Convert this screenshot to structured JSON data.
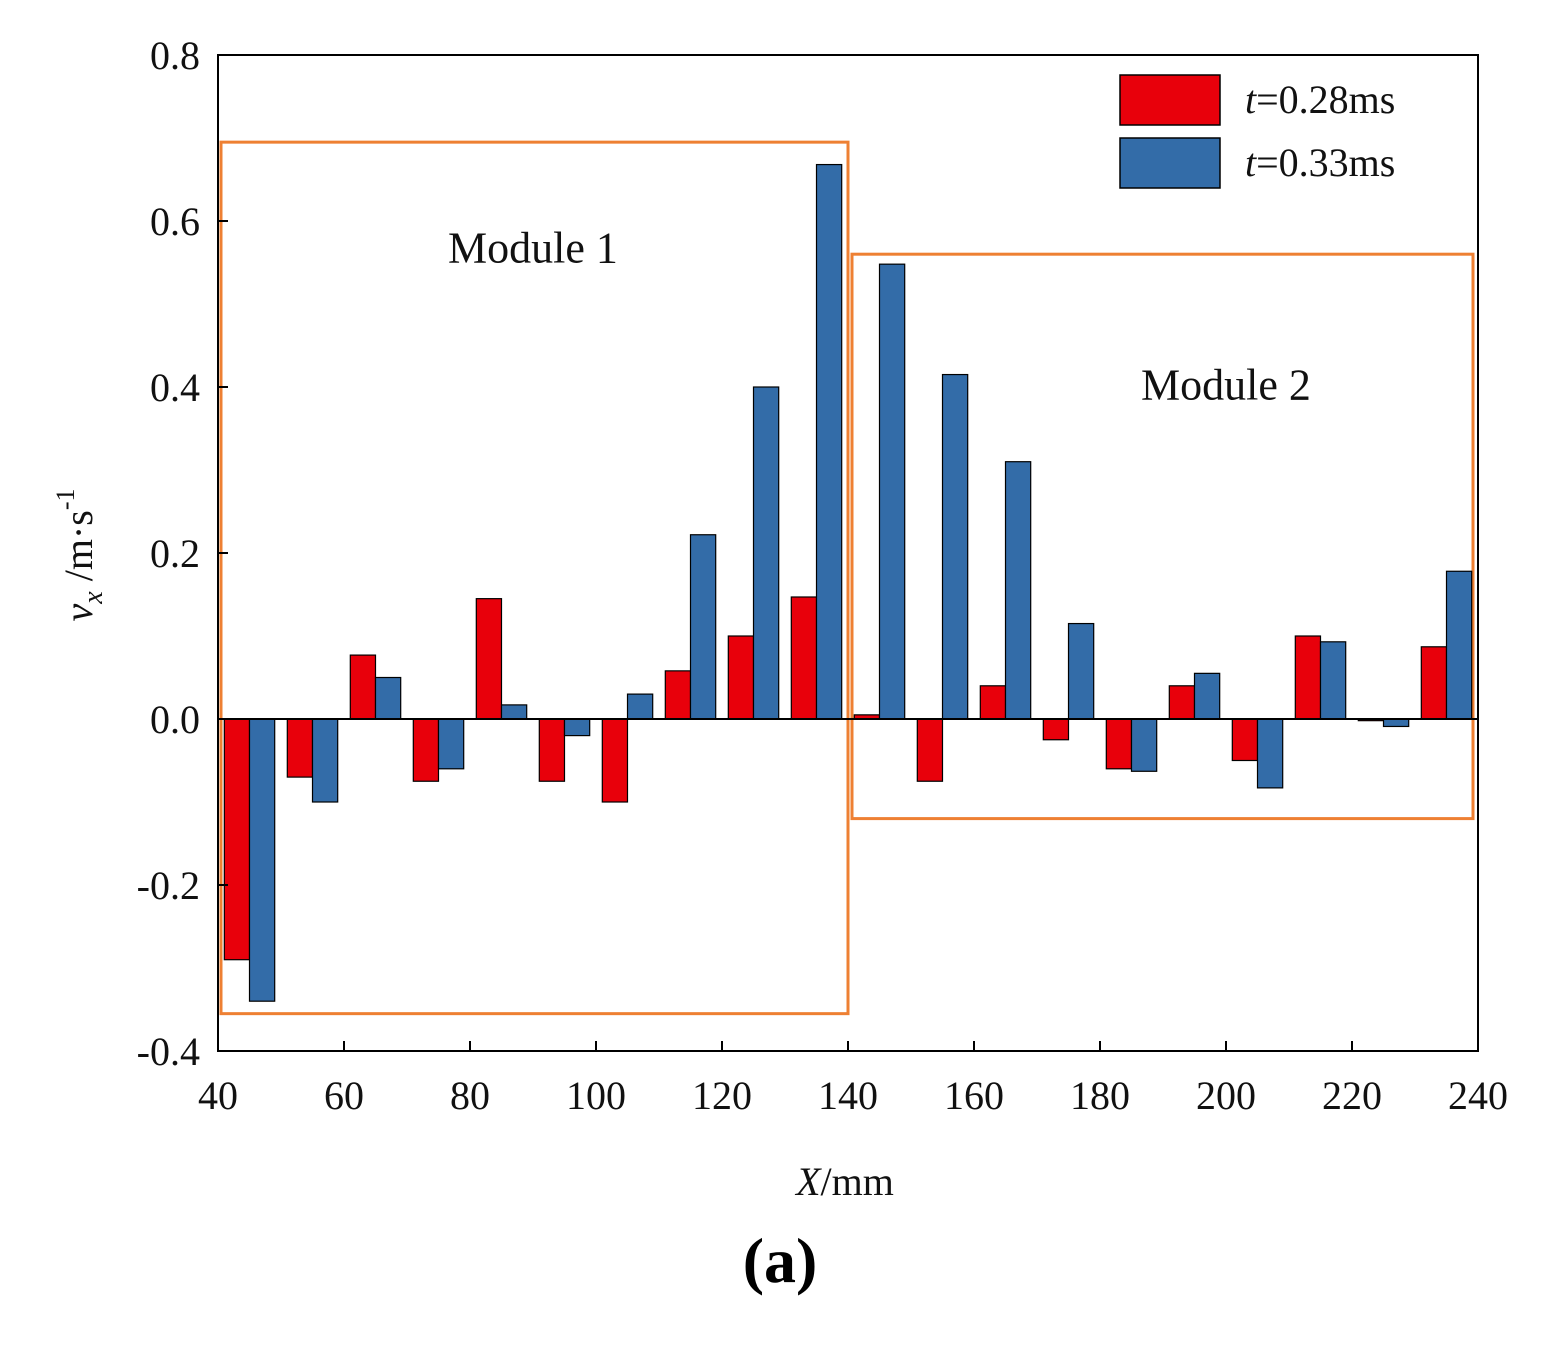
{
  "chart_data": {
    "type": "bar",
    "title": "",
    "xlabel_italic": "X",
    "xlabel_rest": "/mm",
    "ylabel_symbol": "v",
    "ylabel_subscript": "x",
    "ylabel_rest": " /m·s",
    "ylabel_superscript": "-1",
    "xlim": [
      40,
      240
    ],
    "ylim": [
      -0.4,
      0.8
    ],
    "x_ticks": [
      "40",
      "60",
      "80",
      "100",
      "120",
      "140",
      "160",
      "180",
      "200",
      "220",
      "240"
    ],
    "y_ticks": [
      "-0.4",
      "-0.2",
      "0.0",
      "0.2",
      "0.4",
      "0.6",
      "0.8"
    ],
    "x": [
      45,
      55,
      65,
      75,
      85,
      95,
      105,
      115,
      125,
      135,
      145,
      155,
      165,
      175,
      185,
      195,
      205,
      215,
      225,
      235
    ],
    "series": [
      {
        "name": "t=0.28ms",
        "legend_italic": "t",
        "legend_rest": "=0.28ms",
        "color": "#e8000b",
        "values": [
          -0.29,
          -0.07,
          0.077,
          -0.075,
          0.145,
          -0.075,
          -0.1,
          0.058,
          0.1,
          0.147,
          0.005,
          -0.075,
          0.04,
          -0.025,
          -0.06,
          0.04,
          -0.05,
          0.1,
          -0.002,
          0.087
        ]
      },
      {
        "name": "t=0.33ms",
        "legend_italic": "t",
        "legend_rest": "=0.33ms",
        "color": "#336ca8",
        "values": [
          -0.34,
          -0.1,
          0.05,
          -0.06,
          0.017,
          -0.02,
          0.03,
          0.222,
          0.4,
          0.668,
          0.548,
          0.415,
          0.31,
          0.115,
          -0.063,
          0.055,
          -0.083,
          0.093,
          -0.009,
          0.178
        ]
      }
    ],
    "legend_position": "top-right",
    "annotations": [
      {
        "label": "Module 1",
        "x_range": [
          40,
          140
        ],
        "y_range": [
          -0.355,
          0.695
        ],
        "text_x": 90,
        "text_y": 0.55
      },
      {
        "label": "Module 2",
        "x_range": [
          140,
          240
        ],
        "y_range": [
          -0.12,
          0.56
        ],
        "text_x": 200,
        "text_y": 0.385
      }
    ],
    "annotation_color": "#ee8033"
  },
  "panel_label": "(a)"
}
